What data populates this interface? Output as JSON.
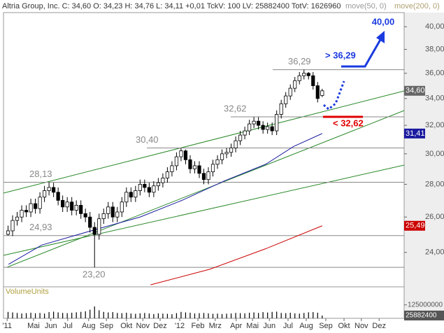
{
  "chart_data": {
    "type": "candlestick",
    "title": "Altria Group, Inc. C: 34,60 O: 34,23 H: 34,76 L: 34,11 +0,01 TckV: 100 LV: 25882400 TotV: 1626960",
    "log_scale": true,
    "xlim": [
      -1,
      87
    ],
    "xticks": [
      {
        "value": -0.2,
        "label": "'11"
      },
      {
        "value": 5.6,
        "label": "Mai"
      },
      {
        "value": 9.4,
        "label": "Jun"
      },
      {
        "value": 13.1,
        "label": "Jul"
      },
      {
        "value": 17.7,
        "label": "Aug"
      },
      {
        "value": 21.6,
        "label": "Sep"
      },
      {
        "value": 26.0,
        "label": "Okt"
      },
      {
        "value": 29.6,
        "label": "Nov"
      },
      {
        "value": 33.4,
        "label": "Dez"
      },
      {
        "value": 37.7,
        "label": "'12"
      },
      {
        "value": 41.7,
        "label": "Feb"
      },
      {
        "value": 45.5,
        "label": "Mrz"
      },
      {
        "value": 50.1,
        "label": "Apr"
      },
      {
        "value": 53.7,
        "label": "Mai"
      },
      {
        "value": 57.4,
        "label": "Jun"
      },
      {
        "value": 61.5,
        "label": "Jul"
      },
      {
        "value": 65.5,
        "label": "Aug"
      },
      {
        "value": 69.8,
        "label": "Sep"
      },
      {
        "value": 73.8,
        "label": "Okt"
      },
      {
        "value": 77.6,
        "label": "Nov"
      },
      {
        "value": 81.5,
        "label": "Dez"
      }
    ],
    "ylim": [
      22.2,
      41.3
    ],
    "yticks": [
      {
        "value": 24,
        "label": "24,00"
      },
      {
        "value": 26,
        "label": "26,00"
      },
      {
        "value": 28,
        "label": "28,00"
      },
      {
        "value": 30,
        "label": "30,00"
      },
      {
        "value": 32,
        "label": "32,00"
      },
      {
        "value": 34,
        "label": "34,00"
      },
      {
        "value": 36,
        "label": "36,00"
      },
      {
        "value": 38,
        "label": "38,00"
      },
      {
        "value": 40,
        "label": "40,00"
      }
    ],
    "close": [
      25.2,
      25.8,
      26.0,
      26.4,
      26.3,
      26.8,
      26.5,
      27.2,
      27.6,
      27.8,
      27.5,
      27.0,
      26.6,
      26.9,
      26.4,
      26.7,
      26.2,
      26.0,
      25.4,
      25.0,
      25.9,
      26.2,
      26.6,
      26.0,
      26.3,
      26.9,
      27.5,
      27.2,
      27.6,
      28.0,
      27.8,
      27.5,
      27.9,
      28.1,
      28.4,
      28.8,
      29.2,
      29.8,
      30.2,
      29.6,
      29.0,
      29.2,
      28.7,
      28.3,
      28.8,
      29.3,
      29.6,
      30.0,
      30.1,
      30.4,
      30.9,
      31.3,
      31.6,
      32.1,
      32.3,
      32.0,
      31.7,
      31.9,
      31.6,
      32.8,
      33.6,
      34.2,
      34.8,
      35.4,
      35.8,
      36.0,
      35.8,
      35.0,
      34.0,
      34.6
    ],
    "open": [
      25.0,
      25.2,
      25.8,
      26.0,
      26.4,
      26.3,
      26.8,
      26.5,
      27.2,
      27.6,
      27.8,
      27.5,
      27.0,
      26.6,
      26.9,
      26.4,
      26.7,
      26.2,
      26.0,
      25.4,
      25.0,
      25.9,
      26.2,
      26.6,
      26.0,
      26.3,
      26.9,
      27.5,
      27.2,
      27.6,
      28.0,
      27.8,
      27.5,
      27.9,
      28.1,
      28.4,
      28.8,
      29.2,
      29.8,
      30.2,
      29.6,
      29.0,
      29.2,
      28.7,
      28.3,
      28.8,
      29.3,
      29.6,
      30.0,
      30.1,
      30.4,
      30.9,
      31.3,
      31.6,
      32.1,
      32.3,
      32.0,
      31.7,
      31.9,
      31.6,
      32.8,
      33.6,
      34.2,
      34.8,
      35.4,
      35.8,
      36.0,
      35.8,
      35.0,
      34.23
    ],
    "high": [
      25.5,
      26.1,
      26.3,
      26.7,
      26.7,
      27.1,
      27.1,
      27.5,
      27.9,
      28.13,
      28.1,
      27.8,
      27.3,
      27.2,
      27.2,
      27.0,
      27.0,
      26.5,
      26.3,
      25.7,
      26.2,
      26.5,
      26.9,
      26.9,
      26.6,
      27.2,
      27.8,
      27.8,
      27.9,
      28.3,
      28.3,
      28.1,
      28.2,
      28.4,
      28.7,
      29.1,
      29.5,
      30.1,
      30.4,
      30.3,
      29.9,
      29.5,
      29.5,
      29.0,
      29.1,
      29.6,
      29.9,
      30.3,
      30.4,
      30.7,
      31.2,
      31.6,
      31.9,
      32.4,
      32.6,
      32.6,
      32.3,
      32.2,
      32.2,
      33.1,
      33.9,
      34.5,
      35.1,
      35.7,
      36.1,
      36.29,
      36.1,
      36.1,
      35.3,
      34.76
    ],
    "low": [
      24.93,
      24.9,
      25.5,
      25.7,
      26.0,
      26.0,
      26.2,
      26.2,
      26.9,
      27.3,
      27.2,
      26.7,
      26.3,
      26.3,
      26.1,
      26.1,
      25.9,
      25.7,
      25.1,
      23.2,
      24.7,
      25.6,
      25.9,
      25.7,
      25.7,
      26.0,
      26.6,
      26.9,
      26.9,
      27.3,
      27.5,
      27.2,
      27.2,
      27.6,
      27.8,
      28.1,
      28.5,
      28.9,
      29.5,
      29.3,
      28.7,
      28.7,
      28.4,
      28.0,
      28.0,
      28.5,
      29.0,
      29.3,
      29.7,
      29.8,
      30.1,
      30.6,
      31.0,
      31.3,
      31.8,
      31.7,
      31.4,
      31.4,
      31.3,
      31.3,
      32.5,
      33.3,
      33.9,
      34.5,
      35.1,
      35.5,
      35.5,
      34.7,
      33.7,
      34.11
    ],
    "ma_series": [
      {
        "name": "move(50, 0)",
        "color": "#1a1aa0",
        "legend_color": "#999999",
        "x": [
          0.1,
          7.4,
          18.2,
          29,
          38.2,
          47.4,
          56.6,
          62.7,
          69
        ],
        "values": [
          23.36,
          24.4,
          25.2,
          26.0,
          27.0,
          28.2,
          29.3,
          30.5,
          31.41
        ]
      },
      {
        "name": "move(200, 0)",
        "color": "#cc0000",
        "legend_color": "#b0a070",
        "x": [
          31.3,
          44.3,
          56.6,
          69
        ],
        "values": [
          22.3,
          23.1,
          24.2,
          25.49
        ]
      }
    ],
    "axis_markers": [
      {
        "value": 34.6,
        "label": "34,60",
        "color": "#666666"
      },
      {
        "value": 31.41,
        "label": "31,41",
        "color": "#1a1aa0"
      },
      {
        "value": 25.49,
        "label": "25,49",
        "color": "#cc0000"
      }
    ],
    "levels": [
      {
        "value": 36.29,
        "label": "36,29"
      },
      {
        "value": 32.62,
        "label": "32,62"
      },
      {
        "value": 30.4,
        "label": "30,40"
      },
      {
        "value": 28.13,
        "label": "28,13"
      },
      {
        "value": 24.93,
        "label": "24,93"
      },
      {
        "value": 23.2,
        "label": "23,20"
      }
    ],
    "targets": [
      {
        "value": 40.0,
        "label": "40,00",
        "color": "#1a3adf"
      },
      {
        "value": 36.29,
        "label": "> 36,29",
        "color": "#1a3adf"
      },
      {
        "value": 32.62,
        "label": "< 32,62",
        "color": "#e00000"
      }
    ],
    "volume": {
      "name": "VolumeUnits",
      "vlim": [
        0,
        280000000
      ],
      "vticks": [
        125000000
      ],
      "last_label": "25882400",
      "values": [
        60000000,
        55000000,
        50000000,
        45000000,
        48000000,
        52000000,
        47000000,
        50000000,
        44000000,
        58000000,
        62000000,
        55000000,
        50000000,
        48000000,
        52000000,
        56000000,
        60000000,
        65000000,
        80000000,
        110000000,
        75000000,
        60000000,
        55000000,
        58000000,
        50000000,
        48000000,
        52000000,
        45000000,
        42000000,
        47000000,
        50000000,
        45000000,
        40000000,
        46000000,
        44000000,
        42000000,
        38000000,
        48000000,
        60000000,
        55000000,
        52000000,
        45000000,
        48000000,
        50000000,
        46000000,
        42000000,
        44000000,
        40000000,
        43000000,
        45000000,
        50000000,
        48000000,
        46000000,
        52000000,
        55000000,
        50000000,
        58000000,
        54000000,
        60000000,
        62000000,
        50000000,
        48000000,
        52000000,
        46000000,
        44000000,
        50000000,
        56000000,
        58000000,
        52000000,
        25882400
      ]
    }
  }
}
